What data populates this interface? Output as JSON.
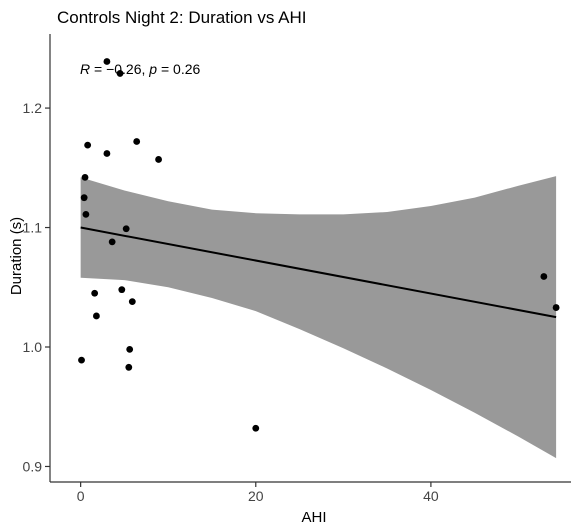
{
  "chart_data": {
    "type": "scatter",
    "title": "Controls Night 2: Duration vs AHI",
    "xlabel": "AHI",
    "ylabel": "Duration (s)",
    "xlim": [
      -3.5,
      56
    ],
    "ylim": [
      0.887,
      1.262
    ],
    "x_ticks": [
      0,
      20,
      40
    ],
    "x_tick_labels": [
      "0",
      "20",
      "40"
    ],
    "y_ticks": [
      0.9,
      1.0,
      1.1,
      1.2
    ],
    "y_tick_labels": [
      "0.9",
      "1.0",
      "1.1",
      "1.2"
    ],
    "grid": false,
    "annotation": {
      "r_label": "R",
      "r_text": " = −0.26, ",
      "p_label": "p",
      "p_text": " = 0.26"
    },
    "points": [
      {
        "x": 3.0,
        "y": 1.239
      },
      {
        "x": 4.5,
        "y": 1.229
      },
      {
        "x": 0.8,
        "y": 1.169
      },
      {
        "x": 3.0,
        "y": 1.162
      },
      {
        "x": 6.4,
        "y": 1.172
      },
      {
        "x": 8.9,
        "y": 1.157
      },
      {
        "x": 0.5,
        "y": 1.142
      },
      {
        "x": 0.4,
        "y": 1.125
      },
      {
        "x": 0.6,
        "y": 1.111
      },
      {
        "x": 5.2,
        "y": 1.099
      },
      {
        "x": 3.6,
        "y": 1.088
      },
      {
        "x": 4.7,
        "y": 1.048
      },
      {
        "x": 1.6,
        "y": 1.045
      },
      {
        "x": 5.9,
        "y": 1.038
      },
      {
        "x": 1.8,
        "y": 1.026
      },
      {
        "x": 0.1,
        "y": 0.989
      },
      {
        "x": 5.6,
        "y": 0.998
      },
      {
        "x": 5.5,
        "y": 0.983
      },
      {
        "x": 20.0,
        "y": 0.932
      },
      {
        "x": 52.9,
        "y": 1.059
      },
      {
        "x": 54.3,
        "y": 1.033
      }
    ],
    "fit_line": {
      "x": [
        0,
        54.3
      ],
      "y": [
        1.1,
        1.025
      ]
    },
    "confidence_band": {
      "x": [
        0,
        5,
        10,
        15,
        20,
        25,
        30,
        35,
        40,
        45,
        50,
        54.3
      ],
      "lower": [
        1.058,
        1.056,
        1.05,
        1.041,
        1.03,
        1.015,
        0.999,
        0.982,
        0.964,
        0.945,
        0.925,
        0.907
      ],
      "upper": [
        1.142,
        1.131,
        1.122,
        1.115,
        1.112,
        1.111,
        1.111,
        1.113,
        1.118,
        1.125,
        1.135,
        1.143
      ]
    },
    "colors": {
      "band": "#999999",
      "line": "#000000",
      "points": "#000000",
      "axis": "#333333"
    }
  }
}
